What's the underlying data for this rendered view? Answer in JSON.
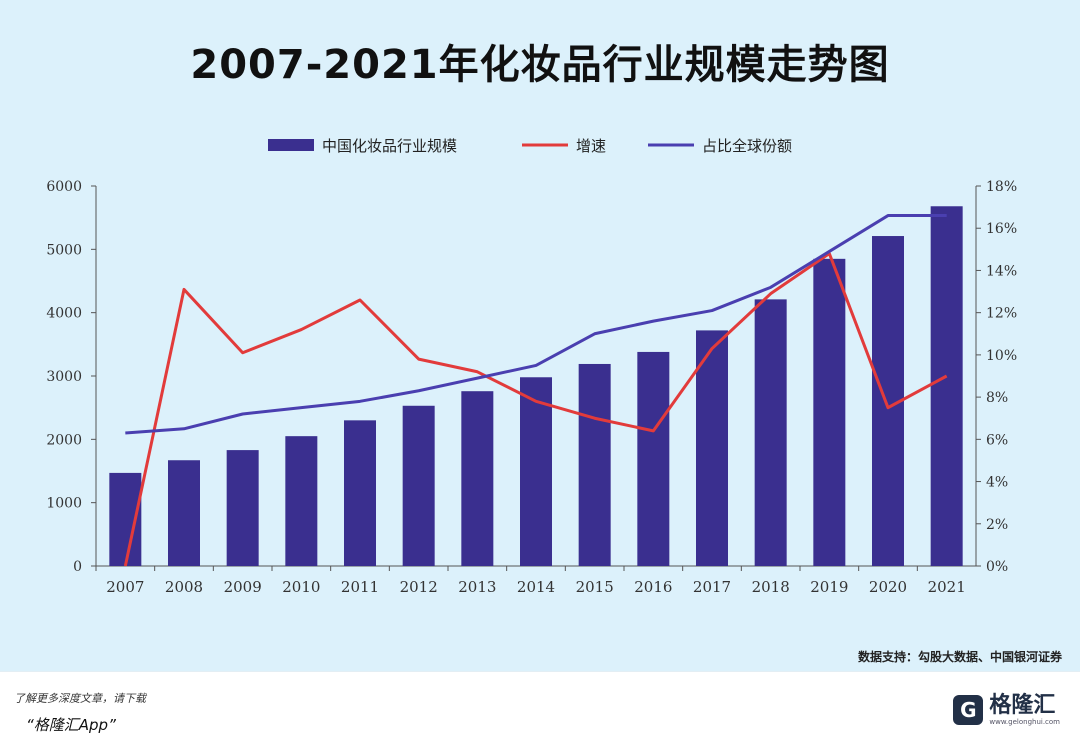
{
  "chart_data": {
    "type": "bar",
    "title": "2007-2021年化妆品行业规模走势图",
    "categories": [
      "2007",
      "2008",
      "2009",
      "2010",
      "2011",
      "2012",
      "2013",
      "2014",
      "2015",
      "2016",
      "2017",
      "2018",
      "2019",
      "2020",
      "2021"
    ],
    "series": [
      {
        "name": "中国化妆品行业规模",
        "type": "bar",
        "axis": "left",
        "values": [
          1470,
          1670,
          1830,
          2050,
          2300,
          2530,
          2760,
          2980,
          3190,
          3380,
          3720,
          4210,
          4850,
          5210,
          5680
        ]
      },
      {
        "name": "增速",
        "type": "line",
        "axis": "right",
        "values": [
          0.0,
          13.1,
          10.1,
          11.2,
          12.6,
          9.8,
          9.2,
          7.8,
          7.0,
          6.4,
          10.3,
          12.9,
          14.8,
          7.5,
          9.0
        ]
      },
      {
        "name": "占比全球份额",
        "type": "line",
        "axis": "right",
        "values": [
          6.3,
          6.5,
          7.2,
          7.5,
          7.8,
          8.3,
          8.9,
          9.5,
          11.0,
          11.6,
          12.1,
          13.2,
          14.9,
          16.6,
          16.6
        ]
      }
    ],
    "y_left": {
      "min": 0,
      "max": 6000,
      "ticks": [
        "0",
        "1000",
        "2000",
        "3000",
        "4000",
        "5000",
        "6000"
      ]
    },
    "y_right": {
      "min": 0,
      "max": 18,
      "ticks": [
        "0%",
        "2%",
        "4%",
        "6%",
        "8%",
        "10%",
        "12%",
        "14%",
        "16%",
        "18%"
      ]
    },
    "legend_placement": "top-center",
    "grid": false
  },
  "colors": {
    "bar": "#3a2f8f",
    "growth": "#e23b3b",
    "share": "#4a3fb0",
    "axis": "#555555",
    "background": "#dcf1fb"
  },
  "source": "数据支持：勾股大数据、中国银河证券",
  "footer": {
    "promo_line1": "了解更多深度文章，请下载",
    "promo_line2": "“格隆汇App”",
    "logo_text": "格隆汇",
    "logo_url": "www.gelonghui.com"
  }
}
